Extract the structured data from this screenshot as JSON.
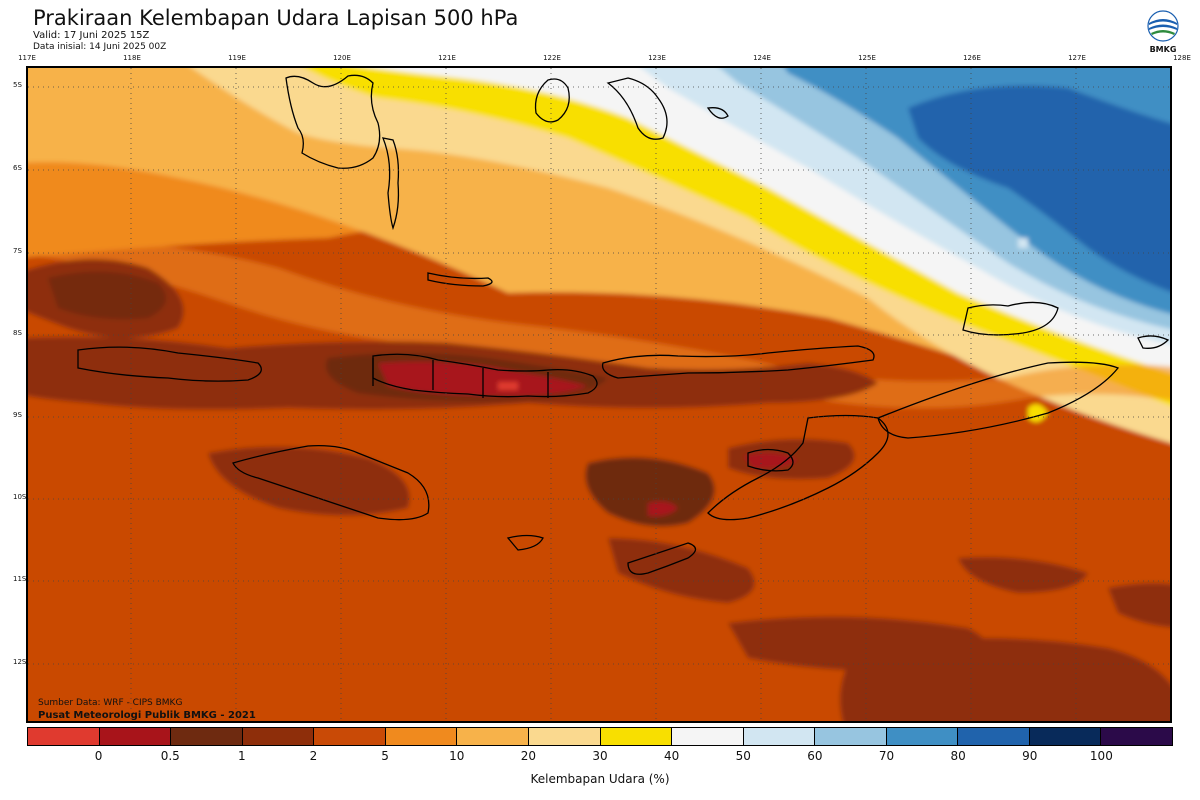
{
  "header": {
    "title": "Prakiraan Kelembapan Udara Lapisan 500 hPa",
    "valid": "Valid: 17 Juni 2025 15Z",
    "init": "Data inisial: 14 Juni 2025 00Z"
  },
  "logo": {
    "text": "BMKG",
    "icon": "bmkg-logo"
  },
  "axes": {
    "x_ticks": [
      "117E",
      "118E",
      "119E",
      "120E",
      "121E",
      "122E",
      "123E",
      "124E",
      "125E",
      "126E",
      "127E",
      "128E"
    ],
    "y_ticks": [
      "5S",
      "6S",
      "7S",
      "8S",
      "9S",
      "10S",
      "11S",
      "12S"
    ]
  },
  "footer": {
    "source": "Sumber Data: WRF - CIPS BMKG",
    "publisher": "Pusat Meteorologi Publik BMKG - 2021"
  },
  "colorbar": {
    "title": "Kelembapan Udara (%)",
    "colors": [
      "#e03a2f",
      "#a8141a",
      "#6e2a10",
      "#8e2e0a",
      "#c94a06",
      "#f08a1e",
      "#f7b24a",
      "#fad98f",
      "#f8df00",
      "#f5f5f5",
      "#d2e6f2",
      "#97c5e0",
      "#3f8fc4",
      "#2063ac",
      "#082a5a",
      "#2b0a49"
    ],
    "labels": [
      "0",
      "0.5",
      "1",
      "2",
      "5",
      "10",
      "20",
      "30",
      "40",
      "50",
      "60",
      "70",
      "80",
      "90",
      "100"
    ]
  }
}
